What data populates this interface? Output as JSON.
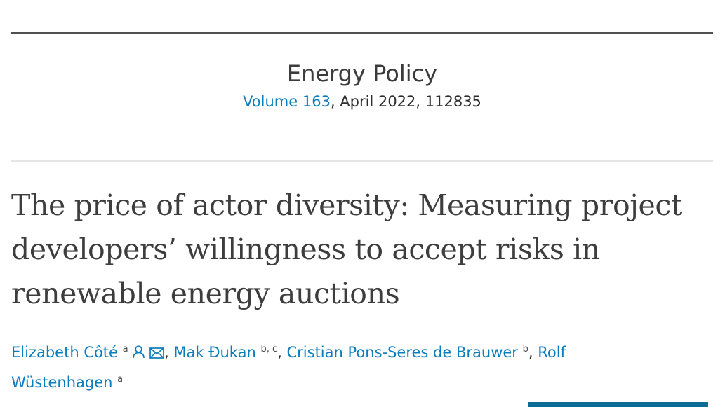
{
  "journal": {
    "name": "Energy Policy",
    "volume": "Volume 163",
    "issue_info": ", April 2022, 112835"
  },
  "article": {
    "title": "The price of actor diversity: Measuring project developers’ willingness to accept risks in renewable energy auctions"
  },
  "authors": [
    {
      "name": "Elizabeth Côté",
      "affiliations": "a"
    },
    {
      "name": "Mak Đukan",
      "affiliations": "b, c"
    },
    {
      "name": "Cristian Pons-Seres de Brauwer",
      "affiliations": "b"
    },
    {
      "name": "Rolf Wüstenhagen",
      "affiliations": "a"
    }
  ],
  "separators": {
    "comma": ","
  },
  "colors": {
    "link": "#0c7dbb",
    "accent_bar": "#0b6c96"
  },
  "icons": [
    "person-icon",
    "envelope-icon"
  ]
}
